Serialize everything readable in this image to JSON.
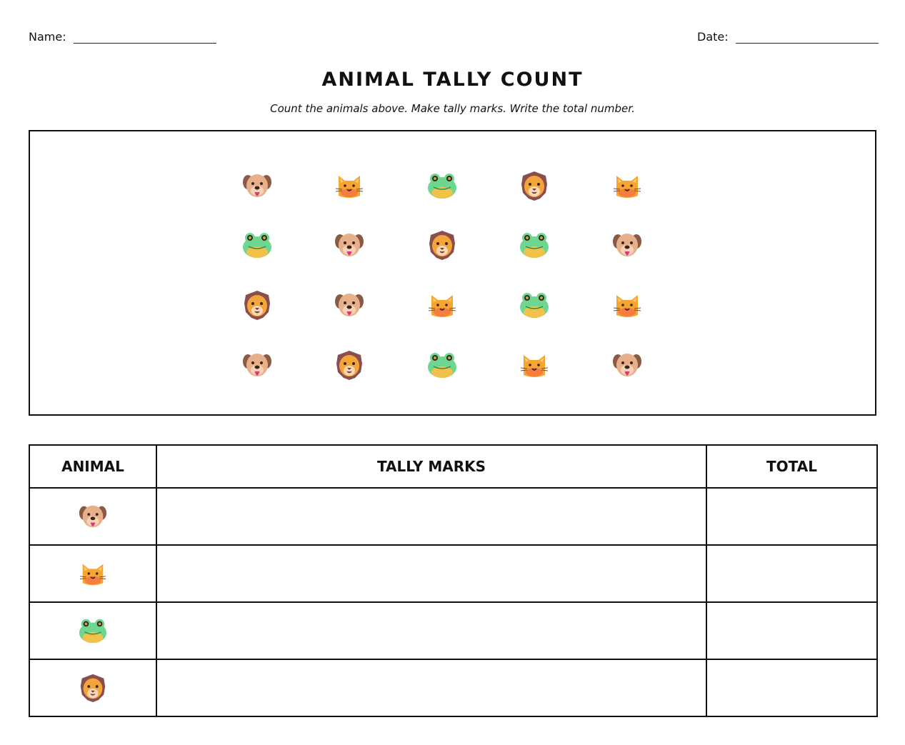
{
  "header": {
    "name_label": "Name:",
    "date_label": "Date:"
  },
  "title": "ANIMAL TALLY COUNT",
  "instructions": "Count the animals above. Make tally marks. Write the total number.",
  "animal_grid": [
    [
      "dog-icon",
      "cat-icon",
      "frog-icon",
      "lion-icon",
      "cat-icon"
    ],
    [
      "frog-icon",
      "dog-icon",
      "lion-icon",
      "frog-icon",
      "dog-icon"
    ],
    [
      "lion-icon",
      "dog-icon",
      "cat-icon",
      "frog-icon",
      "cat-icon"
    ],
    [
      "dog-icon",
      "lion-icon",
      "frog-icon",
      "cat-icon",
      "dog-icon"
    ]
  ],
  "table": {
    "headers": {
      "animal": "ANIMAL",
      "tally": "TALLY MARKS",
      "total": "TOTAL"
    },
    "rows": [
      {
        "icon": "dog-icon",
        "tally": "",
        "total": ""
      },
      {
        "icon": "cat-icon",
        "tally": "",
        "total": ""
      },
      {
        "icon": "frog-icon",
        "tally": "",
        "total": ""
      },
      {
        "icon": "lion-icon",
        "tally": "",
        "total": ""
      }
    ]
  },
  "colors": {
    "border": "#111111",
    "dog": "#e0a57c",
    "cat": "#f7a531",
    "frog": "#6fd68f",
    "lion": "#8a4e4e"
  }
}
